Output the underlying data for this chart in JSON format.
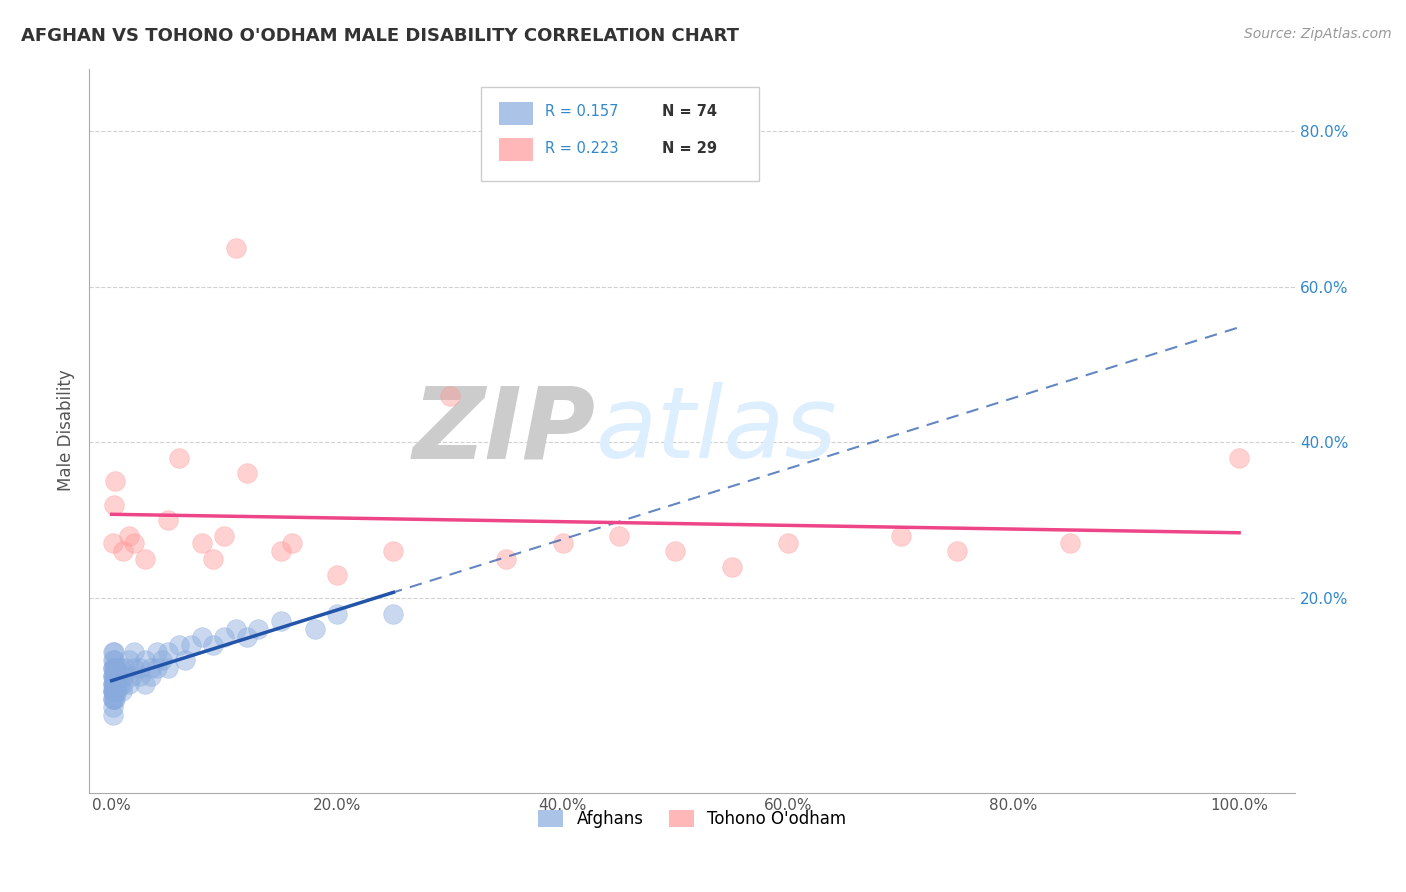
{
  "title": "AFGHAN VS TOHONO O'ODHAM MALE DISABILITY CORRELATION CHART",
  "source": "Source: ZipAtlas.com",
  "ylabel": "Male Disability",
  "blue_label": "Afghans",
  "pink_label": "Tohono O'odham",
  "blue_R": 0.157,
  "blue_N": 74,
  "pink_R": 0.223,
  "pink_N": 29,
  "blue_color": "#88AADD",
  "pink_color": "#FF9999",
  "blue_line_color": "#2255AA",
  "pink_line_color": "#EE4488",
  "blue_scatter": {
    "x": [
      0.001,
      0.001,
      0.001,
      0.001,
      0.001,
      0.001,
      0.001,
      0.001,
      0.001,
      0.001,
      0.001,
      0.001,
      0.001,
      0.001,
      0.001,
      0.002,
      0.002,
      0.002,
      0.002,
      0.002,
      0.002,
      0.002,
      0.002,
      0.002,
      0.002,
      0.003,
      0.003,
      0.003,
      0.003,
      0.003,
      0.003,
      0.003,
      0.004,
      0.004,
      0.004,
      0.005,
      0.005,
      0.005,
      0.006,
      0.007,
      0.008,
      0.009,
      0.01,
      0.01,
      0.012,
      0.015,
      0.015,
      0.018,
      0.02,
      0.02,
      0.025,
      0.025,
      0.03,
      0.03,
      0.035,
      0.035,
      0.04,
      0.04,
      0.045,
      0.05,
      0.05,
      0.06,
      0.065,
      0.07,
      0.08,
      0.09,
      0.1,
      0.11,
      0.12,
      0.13,
      0.15,
      0.18,
      0.2,
      0.25
    ],
    "y": [
      0.08,
      0.09,
      0.1,
      0.11,
      0.12,
      0.07,
      0.06,
      0.13,
      0.08,
      0.09,
      0.1,
      0.05,
      0.11,
      0.07,
      0.08,
      0.09,
      0.1,
      0.11,
      0.08,
      0.07,
      0.12,
      0.09,
      0.1,
      0.08,
      0.13,
      0.09,
      0.1,
      0.11,
      0.08,
      0.09,
      0.07,
      0.1,
      0.09,
      0.11,
      0.08,
      0.09,
      0.1,
      0.08,
      0.1,
      0.09,
      0.11,
      0.08,
      0.1,
      0.09,
      0.11,
      0.12,
      0.09,
      0.1,
      0.11,
      0.13,
      0.1,
      0.11,
      0.12,
      0.09,
      0.11,
      0.1,
      0.13,
      0.11,
      0.12,
      0.13,
      0.11,
      0.14,
      0.12,
      0.14,
      0.15,
      0.14,
      0.15,
      0.16,
      0.15,
      0.16,
      0.17,
      0.16,
      0.18,
      0.18
    ]
  },
  "pink_scatter": {
    "x": [
      0.001,
      0.002,
      0.003,
      0.01,
      0.015,
      0.02,
      0.03,
      0.05,
      0.06,
      0.08,
      0.09,
      0.1,
      0.11,
      0.12,
      0.15,
      0.16,
      0.2,
      0.25,
      0.3,
      0.35,
      0.4,
      0.45,
      0.5,
      0.55,
      0.6,
      0.7,
      0.75,
      0.85,
      1.0
    ],
    "y": [
      0.27,
      0.32,
      0.35,
      0.26,
      0.28,
      0.27,
      0.25,
      0.3,
      0.38,
      0.27,
      0.25,
      0.28,
      0.65,
      0.36,
      0.26,
      0.27,
      0.23,
      0.26,
      0.46,
      0.25,
      0.27,
      0.28,
      0.26,
      0.24,
      0.27,
      0.28,
      0.26,
      0.27,
      0.38
    ]
  },
  "xlim": [
    -0.02,
    1.05
  ],
  "ylim": [
    -0.05,
    0.88
  ],
  "xticks": [
    0.0,
    0.2,
    0.4,
    0.6,
    0.8,
    1.0
  ],
  "xtick_labels": [
    "0.0%",
    "20.0%",
    "40.0%",
    "60.0%",
    "80.0%",
    "100.0%"
  ],
  "yticks_right": [
    0.2,
    0.4,
    0.6,
    0.8
  ],
  "ytick_labels_right": [
    "20.0%",
    "40.0%",
    "60.0%",
    "80.0%"
  ],
  "background_color": "#FFFFFF",
  "grid_color": "#CCCCCC",
  "title_color": "#333333",
  "source_color": "#999999",
  "legend_R_color": "#3388CC",
  "watermark_color": "#DDEEFF"
}
